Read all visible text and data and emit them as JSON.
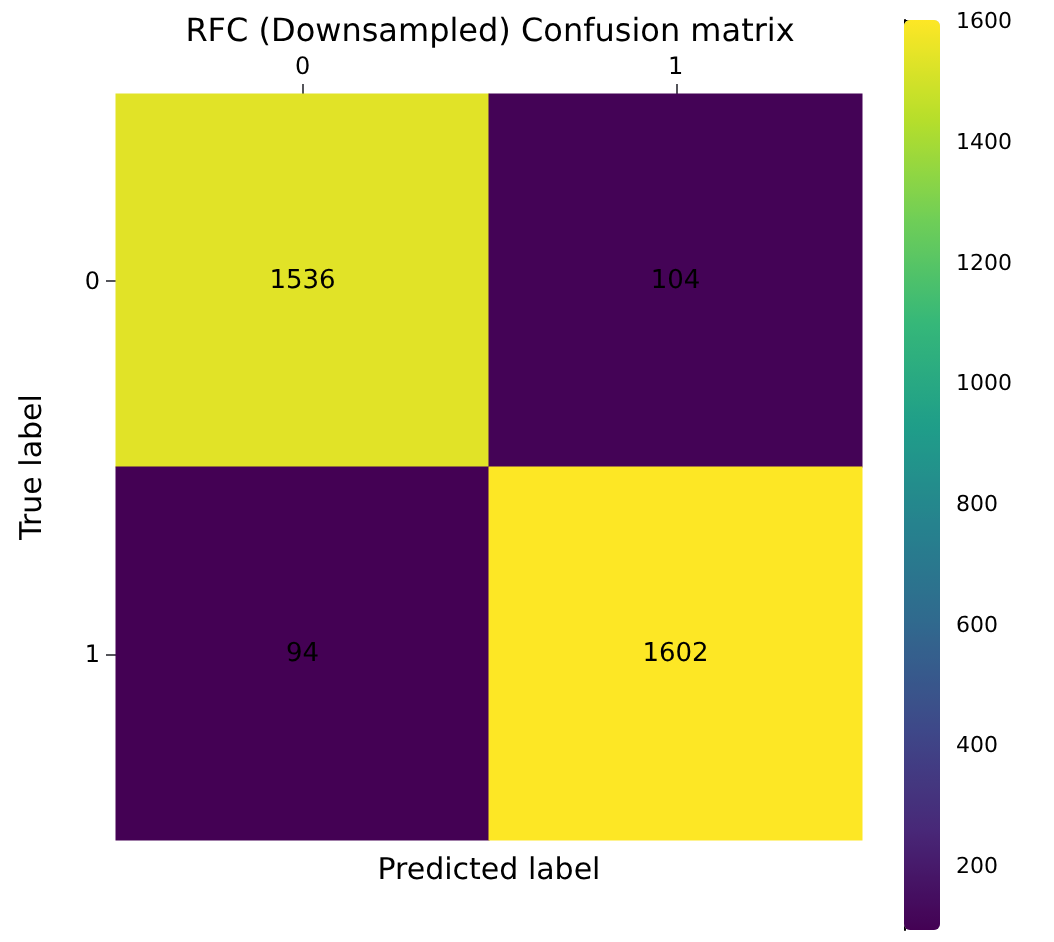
{
  "chart_data": {
    "type": "heatmap",
    "title": "RFC (Downsampled) Confusion matrix",
    "xlabel": "Predicted label",
    "ylabel": "True label",
    "categories": [
      "0",
      "1"
    ],
    "y_categories": [
      "0",
      "1"
    ],
    "cells": [
      [
        1536,
        104
      ],
      [
        94,
        1602
      ]
    ],
    "data_labels": true,
    "clim": [
      94,
      1602
    ],
    "cticks": [
      200,
      400,
      600,
      800,
      1000,
      1200,
      1400,
      1600
    ]
  }
}
